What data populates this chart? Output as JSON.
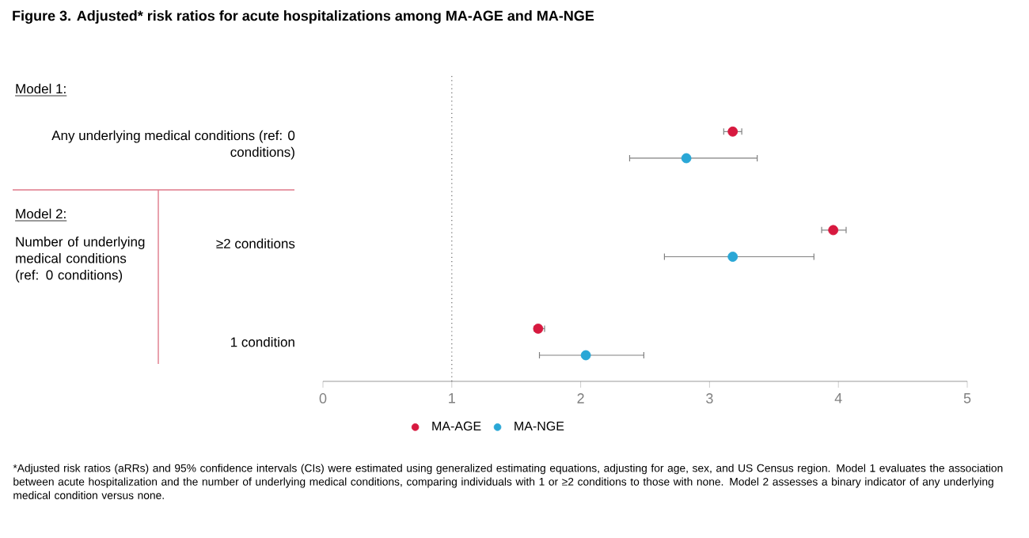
{
  "chart_data": {
    "type": "scatter",
    "orientation": "horizontal",
    "title": "Figure 3. Adjusted* risk ratios for acute hospitalizations among MA-AGE and MA-NGE",
    "categories": [
      "Any underlying medical conditions (ref: 0 conditions)",
      "≥2 conditions",
      "1 condition"
    ],
    "series": [
      {
        "name": "MA-AGE",
        "color": "#d7193f",
        "values": [
          3.18,
          3.96,
          1.67
        ],
        "errors": [
          [
            3.11,
            3.25
          ],
          [
            3.87,
            4.06
          ],
          [
            1.64,
            1.72
          ]
        ]
      },
      {
        "name": "MA-NGE",
        "color": "#2aa7d6",
        "values": [
          2.82,
          3.18,
          2.04
        ],
        "errors": [
          [
            2.38,
            3.37
          ],
          [
            2.65,
            3.81
          ],
          [
            1.68,
            2.49
          ]
        ]
      }
    ],
    "xlim": [
      0,
      5
    ],
    "xticks": [
      0,
      1,
      2,
      3,
      4,
      5
    ],
    "ref_lines": [
      {
        "axis": "x",
        "value": 1,
        "line_style": "dotted"
      }
    ],
    "legend": "bottom",
    "annotations": [
      "Model 1:",
      "Model 2:",
      "Number of underlying medical conditions (ref: 0 conditions)",
      "*Adjusted risk ratios (aRRs) and 95% confidence intervals (CIs) were estimated using generalized estimating equations, adjusting for age, sex, and US Census region. Model 1 evaluates the association between acute hospitalization and the number of underlying medical conditions, comparing individuals with 1 or ≥2 conditions to those with none. Model 2 assesses a binary indicator of any underlying medical condition versus none."
    ]
  }
}
